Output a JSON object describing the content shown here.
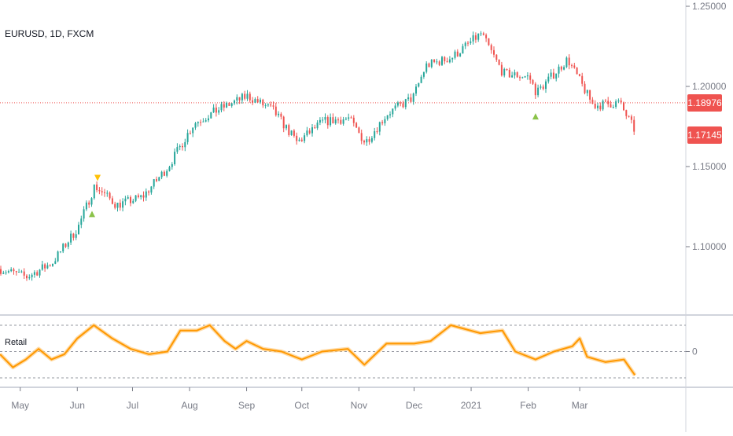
{
  "header": {
    "symbol": "EURUSD, 1D, FXCM"
  },
  "indicator": {
    "name": "Retail",
    "zero_label": "0"
  },
  "price_axis": {
    "ticks": [
      "1.25000",
      "1.20000",
      "1.15000",
      "1.10000"
    ]
  },
  "time_axis": {
    "labels": [
      "May",
      "Jun",
      "Jul",
      "Aug",
      "Sep",
      "Oct",
      "Nov",
      "Dec",
      "2021",
      "Feb",
      "Mar"
    ]
  },
  "price_labels": {
    "line_price": "1.18976",
    "last_price": "1.17145"
  },
  "colors": {
    "up": "#26a69a",
    "down": "#ef5350",
    "indicator_line": "#ff9800",
    "signal_up": "#8bc34a",
    "signal_down": "#ffc107"
  },
  "chart_data": {
    "type": "candlestick",
    "symbol": "EURUSD",
    "timeframe": "1D",
    "ylim": [
      1.065,
      1.255
    ],
    "y_ticks": [
      1.25,
      1.2,
      1.15,
      1.1
    ],
    "x_labels": [
      "May",
      "Jun",
      "Jul",
      "Aug",
      "Sep",
      "Oct",
      "Nov",
      "Dec",
      "2021",
      "Feb",
      "Mar"
    ],
    "close_path": [
      {
        "d": "2020-04-20",
        "p": 1.086
      },
      {
        "d": "2020-05-04",
        "p": 1.081
      },
      {
        "d": "2020-05-18",
        "p": 1.09
      },
      {
        "d": "2020-06-01",
        "p": 1.112
      },
      {
        "d": "2020-06-10",
        "p": 1.138
      },
      {
        "d": "2020-06-22",
        "p": 1.126
      },
      {
        "d": "2020-07-06",
        "p": 1.131
      },
      {
        "d": "2020-07-20",
        "p": 1.15
      },
      {
        "d": "2020-08-03",
        "p": 1.177
      },
      {
        "d": "2020-08-17",
        "p": 1.186
      },
      {
        "d": "2020-09-01",
        "p": 1.194
      },
      {
        "d": "2020-09-15",
        "p": 1.185
      },
      {
        "d": "2020-09-28",
        "p": 1.165
      },
      {
        "d": "2020-10-12",
        "p": 1.178
      },
      {
        "d": "2020-10-26",
        "p": 1.18
      },
      {
        "d": "2020-11-04",
        "p": 1.165
      },
      {
        "d": "2020-11-16",
        "p": 1.183
      },
      {
        "d": "2020-11-30",
        "p": 1.193
      },
      {
        "d": "2020-12-07",
        "p": 1.213
      },
      {
        "d": "2020-12-21",
        "p": 1.218
      },
      {
        "d": "2021-01-06",
        "p": 1.233
      },
      {
        "d": "2021-01-18",
        "p": 1.208
      },
      {
        "d": "2021-02-01",
        "p": 1.206
      },
      {
        "d": "2021-02-05",
        "p": 1.196
      },
      {
        "d": "2021-02-22",
        "p": 1.217
      },
      {
        "d": "2021-03-08",
        "p": 1.188
      },
      {
        "d": "2021-03-22",
        "p": 1.19
      },
      {
        "d": "2021-03-31",
        "p": 1.1715
      }
    ],
    "horizontal_line": 1.18976,
    "last_price": 1.17145,
    "signals": [
      {
        "d": "2020-06-09",
        "type": "up"
      },
      {
        "d": "2020-06-12",
        "type": "down"
      },
      {
        "d": "2021-02-05",
        "type": "up"
      }
    ],
    "indicator": {
      "name": "Retail",
      "levels": [
        1,
        0,
        -1
      ],
      "values": [
        {
          "d": "2020-04-20",
          "v": -0.1
        },
        {
          "d": "2020-04-27",
          "v": -0.6
        },
        {
          "d": "2020-05-04",
          "v": -0.3
        },
        {
          "d": "2020-05-11",
          "v": 0.1
        },
        {
          "d": "2020-05-18",
          "v": -0.3
        },
        {
          "d": "2020-05-25",
          "v": -0.1
        },
        {
          "d": "2020-06-01",
          "v": 0.5
        },
        {
          "d": "2020-06-10",
          "v": 1.0
        },
        {
          "d": "2020-06-20",
          "v": 0.5
        },
        {
          "d": "2020-06-30",
          "v": 0.1
        },
        {
          "d": "2020-07-10",
          "v": -0.1
        },
        {
          "d": "2020-07-20",
          "v": 0.0
        },
        {
          "d": "2020-07-27",
          "v": 0.8
        },
        {
          "d": "2020-08-05",
          "v": 0.8
        },
        {
          "d": "2020-08-12",
          "v": 1.0
        },
        {
          "d": "2020-08-20",
          "v": 0.4
        },
        {
          "d": "2020-08-26",
          "v": 0.1
        },
        {
          "d": "2020-09-01",
          "v": 0.4
        },
        {
          "d": "2020-09-10",
          "v": 0.1
        },
        {
          "d": "2020-09-20",
          "v": 0.0
        },
        {
          "d": "2020-10-01",
          "v": -0.3
        },
        {
          "d": "2020-10-12",
          "v": 0.0
        },
        {
          "d": "2020-10-26",
          "v": 0.1
        },
        {
          "d": "2020-11-04",
          "v": -0.5
        },
        {
          "d": "2020-11-16",
          "v": 0.3
        },
        {
          "d": "2020-12-01",
          "v": 0.3
        },
        {
          "d": "2020-12-10",
          "v": 0.4
        },
        {
          "d": "2020-12-21",
          "v": 1.0
        },
        {
          "d": "2021-01-06",
          "v": 0.7
        },
        {
          "d": "2021-01-18",
          "v": 0.8
        },
        {
          "d": "2021-01-25",
          "v": 0.0
        },
        {
          "d": "2021-02-05",
          "v": -0.3
        },
        {
          "d": "2021-02-15",
          "v": 0.0
        },
        {
          "d": "2021-02-25",
          "v": 0.2
        },
        {
          "d": "2021-03-01",
          "v": 0.5
        },
        {
          "d": "2021-03-05",
          "v": -0.2
        },
        {
          "d": "2021-03-15",
          "v": -0.4
        },
        {
          "d": "2021-03-25",
          "v": -0.3
        },
        {
          "d": "2021-03-31",
          "v": -0.9
        }
      ]
    }
  }
}
